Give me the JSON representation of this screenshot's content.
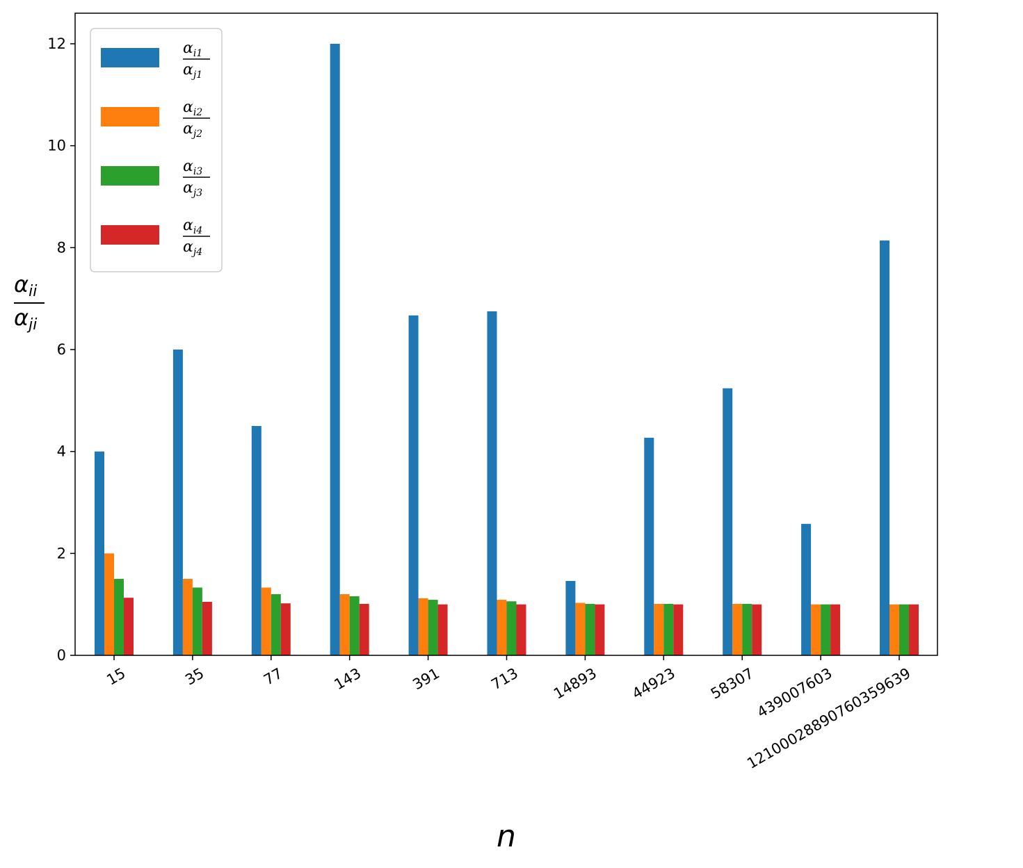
{
  "chart_data": {
    "type": "bar",
    "xlabel": "n",
    "ylabel": {
      "numerator": "α",
      "numerator_sub": "ii",
      "denominator": "α",
      "denominator_sub": "ji"
    },
    "categories": [
      "15",
      "35",
      "77",
      "143",
      "391",
      "713",
      "14893",
      "44923",
      "58307",
      "439007603",
      "121000288907603596​39"
    ],
    "series": [
      {
        "name": "α_i1 / α_j1",
        "num_sub": "i1",
        "den_sub": "j1",
        "color": "#1f77b4",
        "values": [
          4.0,
          6.0,
          4.5,
          12.0,
          6.67,
          6.75,
          1.46,
          4.27,
          5.24,
          2.58,
          8.14
        ]
      },
      {
        "name": "α_i2 / α_j2",
        "num_sub": "i2",
        "den_sub": "j2",
        "color": "#ff7f0e",
        "values": [
          2.0,
          1.5,
          1.33,
          1.2,
          1.12,
          1.09,
          1.03,
          1.01,
          1.01,
          1.0,
          1.0
        ]
      },
      {
        "name": "α_i3 / α_j3",
        "num_sub": "i3",
        "den_sub": "j3",
        "color": "#2ca02c",
        "values": [
          1.5,
          1.33,
          1.2,
          1.16,
          1.09,
          1.06,
          1.01,
          1.01,
          1.01,
          1.0,
          1.0
        ]
      },
      {
        "name": "α_i4 / α_j4",
        "num_sub": "i4",
        "den_sub": "j4",
        "color": "#d62728",
        "values": [
          1.13,
          1.05,
          1.02,
          1.01,
          1.0,
          1.0,
          1.0,
          1.0,
          1.0,
          1.0,
          1.0
        ]
      }
    ],
    "ylim": [
      0,
      12.6
    ],
    "yticks": [
      0,
      2,
      4,
      6,
      8,
      10,
      12
    ],
    "grid": false,
    "legend_position": "top-left",
    "xtick_rotation_deg": 30
  }
}
